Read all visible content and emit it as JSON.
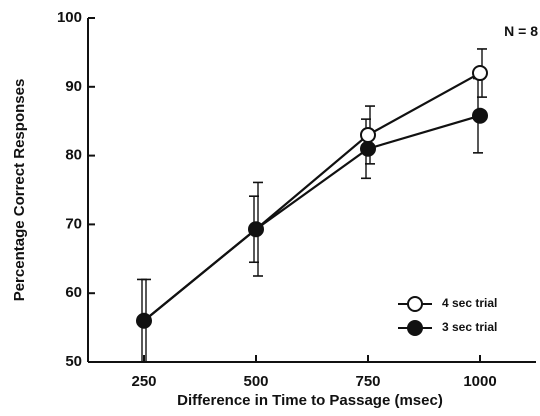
{
  "chart_data": {
    "type": "line",
    "title": "",
    "xlabel": "Difference in Time to Passage (msec)",
    "ylabel": "Percentage Correct Responses",
    "annotation": "N = 8",
    "x": [
      250,
      500,
      750,
      1000
    ],
    "x_tick_labels": [
      "250",
      "500",
      "750",
      "1000"
    ],
    "y_tick_labels": [
      "50",
      "60",
      "70",
      "80",
      "90",
      "100"
    ],
    "xlim": [
      125,
      1125
    ],
    "ylim": [
      50,
      100
    ],
    "grid": false,
    "legend_position": "bottom-right",
    "series": [
      {
        "name": "4 sec trial",
        "marker": "open-circle",
        "values": [
          56.0,
          69.3,
          83.0,
          92.0
        ],
        "error": [
          6.0,
          6.8,
          4.2,
          3.5
        ]
      },
      {
        "name": "3 sec trial",
        "marker": "filled-circle",
        "values": [
          56.0,
          69.3,
          81.0,
          85.8
        ],
        "error": [
          6.0,
          4.8,
          4.3,
          5.4
        ]
      }
    ],
    "colors": {
      "line": "#111111",
      "marker_fill_open": "#ffffff",
      "marker_fill_filled": "#111111"
    }
  }
}
